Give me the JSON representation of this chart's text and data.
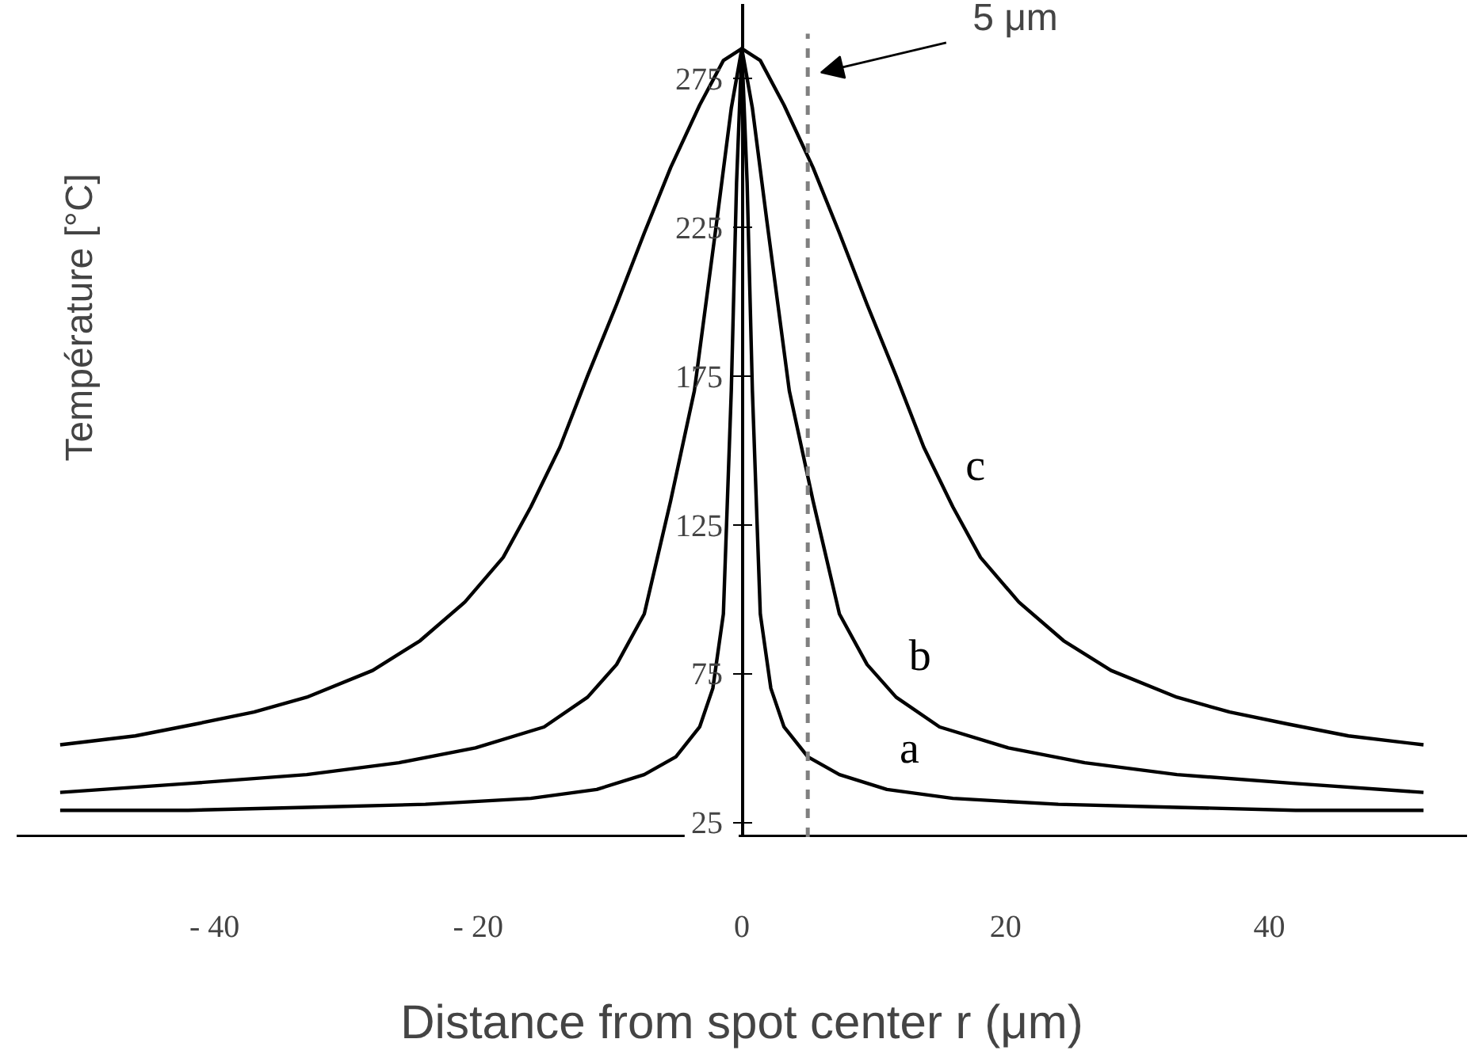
{
  "chart_data": {
    "type": "line",
    "xlabel": "Distance from spot center r (μm)",
    "ylabel": "Température    [°C]",
    "xlim": [
      -55,
      55
    ],
    "ylim": [
      20,
      300
    ],
    "xticks": [
      {
        "value": -40,
        "label": "- 40"
      },
      {
        "value": -20,
        "label": "- 20"
      },
      0,
      20,
      40
    ],
    "yticks": [
      25,
      75,
      125,
      175,
      225,
      275
    ],
    "line_style": "solid",
    "ref_lines": [
      {
        "axis": "x",
        "value": 5,
        "label": "5 μm",
        "color": "#808080",
        "line_style": "dashed"
      }
    ],
    "series": [
      {
        "name": "a",
        "color": "#000000",
        "x": [
          -51.7,
          -42,
          -33,
          -24,
          -16,
          -11,
          -7.4,
          -5,
          -3.2,
          -2.2,
          -1.4,
          -0.8,
          -0.4,
          0,
          0.4,
          0.8,
          1.4,
          2.2,
          3.2,
          5,
          7.4,
          11,
          16,
          24,
          33,
          42,
          51.7
        ],
        "values": [
          29,
          29,
          30,
          31,
          33,
          36,
          41,
          47,
          57,
          70,
          95,
          170,
          240,
          285,
          240,
          170,
          95,
          70,
          57,
          47,
          41,
          36,
          33,
          31,
          30,
          29,
          29
        ]
      },
      {
        "name": "b",
        "color": "#000000",
        "x": [
          -51.7,
          -42,
          -33,
          -26,
          -20.2,
          -15,
          -11.7,
          -9.5,
          -7.4,
          -5.4,
          -3.6,
          -1.9,
          -0.8,
          0,
          0.8,
          1.9,
          3.6,
          5.4,
          7.4,
          9.5,
          11.7,
          15,
          20.2,
          26,
          33,
          42,
          51.7
        ],
        "values": [
          35,
          38,
          41,
          45,
          50,
          57,
          67,
          78,
          95,
          133,
          170,
          227,
          265,
          285,
          265,
          227,
          170,
          133,
          95,
          78,
          67,
          57,
          50,
          45,
          41,
          38,
          35
        ]
      },
      {
        "name": "c",
        "color": "#000000",
        "x": [
          -51.7,
          -46,
          -41.4,
          -37,
          -33,
          -28,
          -24.4,
          -21,
          -18.1,
          -16,
          -13.8,
          -11.7,
          -9.5,
          -7.4,
          -5.4,
          -3.2,
          -1.4,
          0,
          1.4,
          3.2,
          5.4,
          7.4,
          9.5,
          11.7,
          13.8,
          16,
          18.1,
          21,
          24.4,
          28,
          33,
          37,
          41.4,
          46,
          51.7
        ],
        "values": [
          51,
          54,
          58,
          62,
          67,
          76,
          86,
          99,
          114,
          131,
          151,
          175,
          199,
          223,
          245,
          266,
          281,
          285,
          281,
          266,
          245,
          223,
          199,
          175,
          151,
          131,
          114,
          99,
          86,
          76,
          67,
          62,
          58,
          54,
          51
        ]
      }
    ]
  }
}
